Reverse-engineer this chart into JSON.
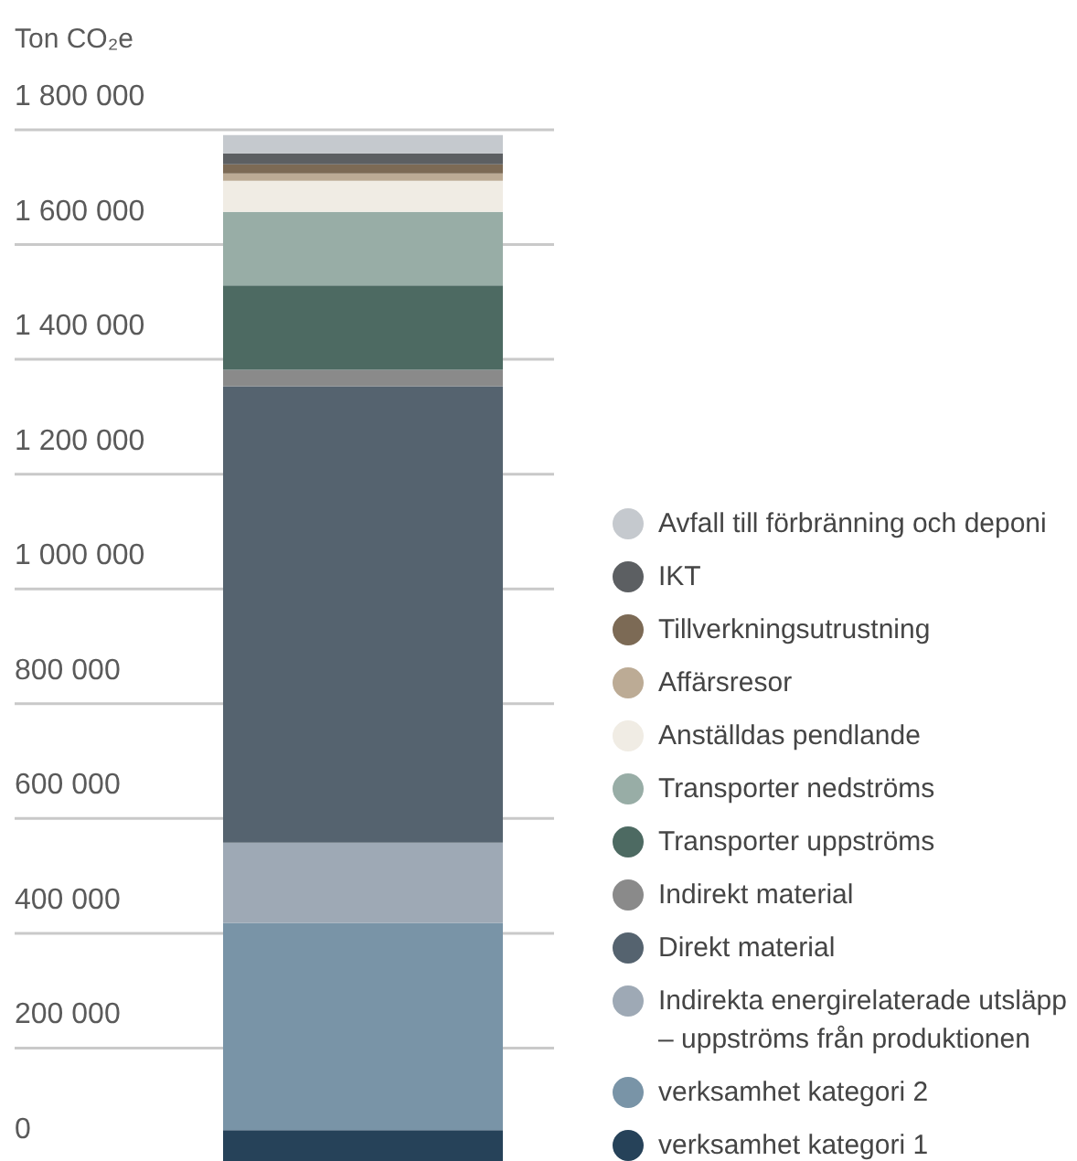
{
  "chart_data": {
    "type": "bar",
    "stacked": true,
    "ylabel": "Ton CO₂e",
    "categories": [
      null
    ],
    "series": [
      {
        "name": "verksamhet kategori 1",
        "color": "#264259",
        "values": [
          57000
        ]
      },
      {
        "name": "verksamhet kategori 2",
        "color": "#7994a7",
        "values": [
          361000
        ]
      },
      {
        "name": "Indirekta energirelaterade utsläpp – uppströms från produktionen",
        "color": "#9ea9b5",
        "values": [
          140000
        ]
      },
      {
        "name": "Direkt material",
        "color": "#55636f",
        "values": [
          795000
        ]
      },
      {
        "name": "Indirekt material",
        "color": "#8a8a8a",
        "values": [
          29000
        ]
      },
      {
        "name": "Transporter uppströms",
        "color": "#4d6a62",
        "values": [
          147000
        ]
      },
      {
        "name": "Transporter nedströms",
        "color": "#98ada6",
        "values": [
          128000
        ]
      },
      {
        "name": "Anställdas pendlande",
        "color": "#f0ece4",
        "values": [
          54000
        ]
      },
      {
        "name": "Affärsresor",
        "color": "#bcab95",
        "values": [
          13000
        ]
      },
      {
        "name": "Tillverkningsutrustning",
        "color": "#7c6a55",
        "values": [
          16000
        ]
      },
      {
        "name": "IKT",
        "color": "#5c5f62",
        "values": [
          19000
        ]
      },
      {
        "name": "Avfall till förbränning och deponi",
        "color": "#c5c9ce",
        "values": [
          32000
        ]
      }
    ],
    "ylim": [
      0,
      1800000
    ],
    "yticks": [
      0,
      {
        "value": 200000,
        "label": "200 000"
      },
      {
        "value": 400000,
        "label": "400 000"
      },
      {
        "value": 600000,
        "label": "600 000"
      },
      {
        "value": 800000,
        "label": "800 000"
      },
      {
        "value": 1000000,
        "label": "1 000 000"
      },
      {
        "value": 1200000,
        "label": "1 200 000"
      },
      {
        "value": 1400000,
        "label": "1 400 000"
      },
      {
        "value": 1600000,
        "label": "1 600 000"
      },
      {
        "value": 1800000,
        "label": "1 800 000"
      }
    ],
    "grid": "y",
    "legend": "right",
    "tick_labels": "y"
  }
}
